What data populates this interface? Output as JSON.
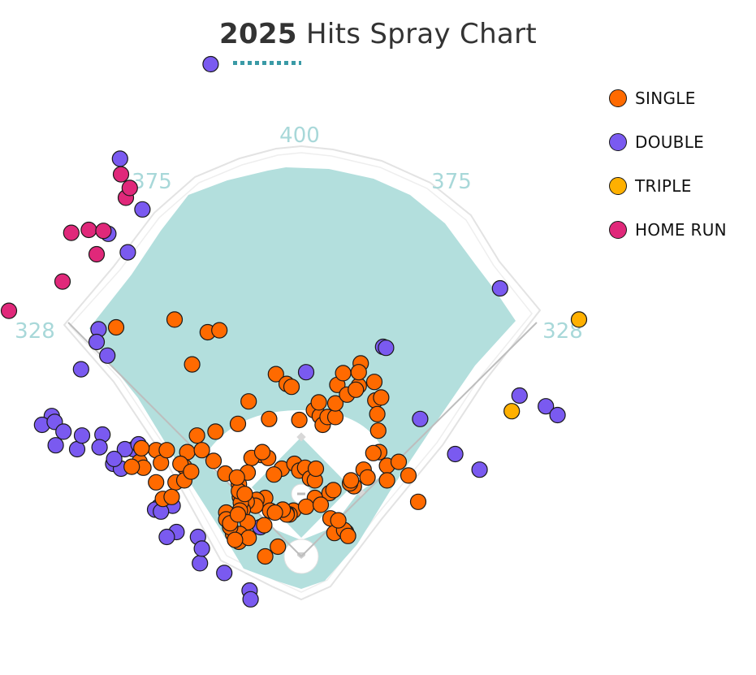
{
  "title": {
    "year": "2025",
    "rest": "Hits Spray Chart"
  },
  "colors": {
    "grass": "#b3dfdd",
    "infield_dirt": "#ffffff",
    "wall": "#e3e3e3",
    "foul_line": "#bdbdbd",
    "distance_label": "#a8d8d9",
    "accent_underline": "#3a9aa6"
  },
  "chart_data": {
    "type": "scatter",
    "title": "2025 Hits Spray Chart",
    "legend_position": "top-right",
    "distance_labels": [
      "400",
      "375",
      "375",
      "328",
      "328"
    ],
    "categories": [
      {
        "key": "single",
        "name": "SINGLE",
        "color": "#ff6a00"
      },
      {
        "key": "double",
        "name": "DOUBLE",
        "color": "#7a5af0"
      },
      {
        "key": "triple",
        "name": "TRIPLE",
        "color": "#ffb000"
      },
      {
        "key": "home_run",
        "name": "HOME RUN",
        "color": "#e0287a"
      }
    ],
    "series": [
      {
        "key": "double",
        "name": "DOUBLE",
        "points": [
          [
            -93,
            505
          ],
          [
            -186,
            408
          ],
          [
            -198,
            331
          ],
          [
            -163,
            356
          ],
          [
            -178,
            312
          ],
          [
            -208,
            233
          ],
          [
            -210,
            220
          ],
          [
            -226,
            192
          ],
          [
            -199,
            206
          ],
          [
            -256,
            144
          ],
          [
            -266,
            135
          ],
          [
            -253,
            138
          ],
          [
            -244,
            128
          ],
          [
            -252,
            114
          ],
          [
            -230,
            110
          ],
          [
            -225,
            124
          ],
          [
            -204,
            125
          ],
          [
            -207,
            112
          ],
          [
            -193,
            95
          ],
          [
            -185,
            90
          ],
          [
            -172,
            110
          ],
          [
            -181,
            110
          ],
          [
            -167,
            115
          ],
          [
            -192,
            100
          ],
          [
            -132,
            52
          ],
          [
            -146,
            51
          ],
          [
            -150,
            48
          ],
          [
            -144,
            46
          ],
          [
            -128,
            25
          ],
          [
            -138,
            20
          ],
          [
            -106,
            20
          ],
          [
            -104,
            -7
          ],
          [
            -102,
            8
          ],
          [
            -79,
            -17
          ],
          [
            -53,
            -35
          ],
          [
            -52,
            -44
          ],
          [
            -42,
            30
          ],
          [
            5,
            189
          ],
          [
            84,
            215
          ],
          [
            87,
            214
          ],
          [
            122,
            141
          ],
          [
            158,
            105
          ],
          [
            183,
            89
          ],
          [
            204,
            275
          ],
          [
            224,
            165
          ],
          [
            251,
            154
          ],
          [
            263,
            145
          ]
        ]
      },
      {
        "key": "triple",
        "name": "TRIPLE",
        "points": [
          [
            285,
            243
          ],
          [
            216,
            149
          ]
        ]
      },
      {
        "key": "home_run",
        "name": "HOME RUN",
        "points": [
          [
            -185,
            392
          ],
          [
            -180,
            368
          ],
          [
            -176,
            378
          ],
          [
            -218,
            335
          ],
          [
            -203,
            334
          ],
          [
            -236,
            332
          ],
          [
            -210,
            310
          ],
          [
            -245,
            282
          ],
          [
            -300,
            252
          ]
        ]
      }
    ],
    "singles": [
      [
        -190,
        235
      ],
      [
        -130,
        243
      ],
      [
        -96,
        230
      ],
      [
        -112,
        197
      ],
      [
        -84,
        232
      ],
      [
        -26,
        187
      ],
      [
        -54,
        159
      ],
      [
        -33,
        141
      ],
      [
        -65,
        136
      ],
      [
        -41,
        104
      ],
      [
        -51,
        101
      ],
      [
        -107,
        124
      ],
      [
        -88,
        128
      ],
      [
        -117,
        107
      ],
      [
        -149,
        109
      ],
      [
        -166,
        97
      ],
      [
        -144,
        96
      ],
      [
        -162,
        91
      ],
      [
        -174,
        92
      ],
      [
        -164,
        111
      ],
      [
        -138,
        109
      ],
      [
        -102,
        109
      ],
      [
        -120,
        92
      ],
      [
        -129,
        76
      ],
      [
        -142,
        59
      ],
      [
        -149,
        76
      ],
      [
        -133,
        61
      ],
      [
        -120,
        78
      ],
      [
        -124,
        95
      ],
      [
        -113,
        87
      ],
      [
        -90,
        98
      ],
      [
        -78,
        85
      ],
      [
        -63,
        61
      ],
      [
        -34,
        101
      ],
      [
        -40,
        107
      ],
      [
        -20,
        90
      ],
      [
        -28,
        84
      ],
      [
        -7,
        95
      ],
      [
        -2,
        88
      ],
      [
        4,
        91
      ],
      [
        9,
        80
      ],
      [
        14,
        78
      ],
      [
        15,
        90
      ],
      [
        -8,
        47
      ],
      [
        -12,
        43
      ],
      [
        -15,
        44
      ],
      [
        -15,
        43
      ],
      [
        -37,
        60
      ],
      [
        -46,
        58
      ],
      [
        -47,
        52
      ],
      [
        -56,
        56
      ],
      [
        -60,
        48
      ],
      [
        -62,
        55
      ],
      [
        -64,
        74
      ],
      [
        -55,
        86
      ],
      [
        -64,
        67
      ],
      [
        -66,
        81
      ],
      [
        -63,
        47
      ],
      [
        -58,
        64
      ],
      [
        -55,
        35
      ],
      [
        -77,
        45
      ],
      [
        -77,
        38
      ],
      [
        -70,
        23
      ],
      [
        -63,
        23
      ],
      [
        -73,
        30
      ],
      [
        -64,
        15
      ],
      [
        -54,
        19
      ],
      [
        -68,
        17
      ],
      [
        -73,
        34
      ],
      [
        -65,
        43
      ],
      [
        -32,
        47
      ],
      [
        -38,
        32
      ],
      [
        -19,
        48
      ],
      [
        -27,
        45
      ],
      [
        -24,
        10
      ],
      [
        -37,
        0
      ],
      [
        -2,
        140
      ],
      [
        -15,
        177
      ],
      [
        -10,
        174
      ],
      [
        13,
        150
      ],
      [
        19,
        144
      ],
      [
        22,
        135
      ],
      [
        27,
        143
      ],
      [
        18,
        158
      ],
      [
        35,
        143
      ],
      [
        35,
        157
      ],
      [
        37,
        176
      ],
      [
        43,
        188
      ],
      [
        47,
        166
      ],
      [
        59,
        175
      ],
      [
        61,
        198
      ],
      [
        59,
        189
      ],
      [
        56,
        171
      ],
      [
        75,
        179
      ],
      [
        76,
        160
      ],
      [
        78,
        146
      ],
      [
        82,
        163
      ],
      [
        79,
        129
      ],
      [
        80,
        107
      ],
      [
        74,
        106
      ],
      [
        88,
        93
      ],
      [
        100,
        97
      ],
      [
        88,
        78
      ],
      [
        110,
        83
      ],
      [
        64,
        89
      ],
      [
        54,
        72
      ],
      [
        50,
        75
      ],
      [
        29,
        65
      ],
      [
        14,
        60
      ],
      [
        33,
        68
      ],
      [
        5,
        51
      ],
      [
        20,
        53
      ],
      [
        30,
        39
      ],
      [
        34,
        24
      ],
      [
        46,
        25
      ],
      [
        44,
        27
      ],
      [
        48,
        21
      ],
      [
        38,
        37
      ],
      [
        51,
        78
      ],
      [
        68,
        81
      ],
      [
        120,
        56
      ]
    ]
  },
  "legend": {
    "items": [
      {
        "label": "SINGLE",
        "color": "#ff6a00"
      },
      {
        "label": "DOUBLE",
        "color": "#7a5af0"
      },
      {
        "label": "TRIPLE",
        "color": "#ffb000"
      },
      {
        "label": "HOME RUN",
        "color": "#e0287a"
      }
    ]
  }
}
